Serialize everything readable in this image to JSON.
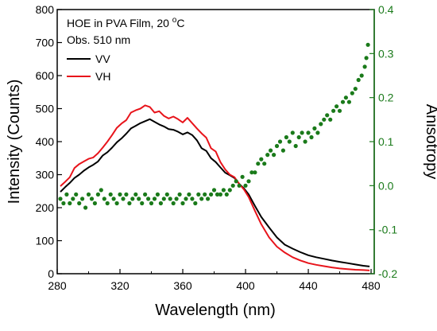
{
  "chart_data": {
    "type": "line",
    "annotation": {
      "line1_prefix": "HOE in PVA Film, 20 ",
      "line1_sup": "o",
      "line1_suffix": "C",
      "line2": "Obs. 510 nm"
    },
    "xlabel": "Wavelength (nm)",
    "ylabel_left": "Intensity (Counts)",
    "ylabel_right": "Anisotropy",
    "xlim": [
      280,
      482
    ],
    "ylim_left": [
      0,
      800
    ],
    "ylim_right": [
      -0.2,
      0.4
    ],
    "x_ticks": [
      280,
      320,
      360,
      400,
      440,
      480
    ],
    "y_left_ticks": [
      0,
      100,
      200,
      300,
      400,
      500,
      600,
      700,
      800
    ],
    "y_right_ticks": [
      -0.2,
      -0.1,
      0.0,
      0.1,
      0.2,
      0.3,
      0.4
    ],
    "y_right_tick_labels": [
      "-0.2",
      "-0.1",
      "0.0",
      "0.1",
      "0.2",
      "0.3",
      "0.4"
    ],
    "legend_placement": "top-left",
    "colors": {
      "VV": "#000000",
      "VH": "#e8141b",
      "anisotropy": "#1a7a1a",
      "right_axis": "#1a7a1a"
    },
    "series": [
      {
        "name": "VV",
        "axis": "left",
        "x": [
          282,
          285,
          288,
          291,
          294,
          297,
          300,
          303,
          306,
          309,
          312,
          315,
          318,
          321,
          324,
          327,
          330,
          333,
          336,
          339,
          342,
          345,
          348,
          351,
          354,
          357,
          360,
          363,
          366,
          369,
          372,
          375,
          378,
          381,
          384,
          387,
          390,
          393,
          396,
          399,
          402,
          406,
          410,
          415,
          420,
          425,
          430,
          435,
          440,
          445,
          450,
          455,
          460,
          465,
          470,
          475,
          479
        ],
        "y": [
          248,
          262,
          275,
          290,
          300,
          312,
          322,
          330,
          340,
          358,
          368,
          382,
          398,
          410,
          424,
          440,
          448,
          456,
          462,
          468,
          460,
          452,
          446,
          438,
          436,
          430,
          422,
          428,
          420,
          404,
          380,
          372,
          350,
          338,
          322,
          306,
          298,
          290,
          272,
          258,
          240,
          205,
          172,
          140,
          110,
          88,
          76,
          65,
          56,
          50,
          45,
          40,
          36,
          32,
          28,
          24,
          22
        ]
      },
      {
        "name": "VH",
        "axis": "left",
        "x": [
          282,
          285,
          288,
          291,
          294,
          297,
          300,
          303,
          306,
          309,
          312,
          315,
          318,
          321,
          324,
          327,
          330,
          333,
          336,
          339,
          342,
          345,
          348,
          351,
          354,
          357,
          360,
          363,
          366,
          369,
          372,
          375,
          378,
          381,
          384,
          387,
          390,
          393,
          396,
          399,
          402,
          406,
          410,
          415,
          420,
          425,
          430,
          435,
          440,
          445,
          450,
          455,
          460,
          465,
          470,
          475,
          479
        ],
        "y": [
          265,
          278,
          292,
          320,
          332,
          340,
          348,
          352,
          365,
          382,
          400,
          420,
          442,
          455,
          465,
          488,
          495,
          500,
          510,
          505,
          488,
          492,
          478,
          470,
          476,
          468,
          458,
          472,
          456,
          440,
          425,
          412,
          380,
          370,
          338,
          316,
          300,
          292,
          272,
          255,
          232,
          190,
          150,
          110,
          82,
          64,
          50,
          40,
          32,
          27,
          23,
          19,
          16,
          14,
          12,
          11,
          10
        ]
      },
      {
        "name": "anisotropy",
        "axis": "right",
        "x": [
          282,
          284,
          286,
          288,
          290,
          292,
          294,
          296,
          298,
          300,
          302,
          304,
          306,
          308,
          310,
          312,
          314,
          316,
          318,
          320,
          322,
          324,
          326,
          328,
          330,
          332,
          334,
          336,
          338,
          340,
          342,
          344,
          346,
          348,
          350,
          352,
          354,
          356,
          358,
          360,
          362,
          364,
          366,
          368,
          370,
          372,
          374,
          376,
          378,
          380,
          382,
          384,
          386,
          388,
          390,
          392,
          394,
          396,
          398,
          400,
          402,
          404,
          406,
          408,
          410,
          412,
          414,
          416,
          418,
          420,
          422,
          424,
          426,
          428,
          430,
          432,
          434,
          436,
          438,
          440,
          442,
          444,
          446,
          448,
          450,
          452,
          454,
          456,
          458,
          460,
          462,
          464,
          466,
          468,
          470,
          472,
          474,
          476,
          477,
          478
        ],
        "y": [
          -0.03,
          -0.04,
          -0.02,
          -0.04,
          -0.03,
          -0.02,
          -0.04,
          -0.03,
          -0.05,
          -0.02,
          -0.03,
          -0.04,
          -0.02,
          -0.01,
          -0.03,
          -0.04,
          -0.02,
          -0.03,
          -0.04,
          -0.02,
          -0.03,
          -0.02,
          -0.04,
          -0.03,
          -0.02,
          -0.03,
          -0.04,
          -0.02,
          -0.03,
          -0.04,
          -0.03,
          -0.02,
          -0.04,
          -0.03,
          -0.02,
          -0.03,
          -0.04,
          -0.03,
          -0.02,
          -0.04,
          -0.03,
          -0.02,
          -0.03,
          -0.04,
          -0.02,
          -0.03,
          -0.02,
          -0.03,
          -0.02,
          -0.01,
          -0.02,
          -0.02,
          -0.01,
          -0.02,
          -0.01,
          0.0,
          0.01,
          0.0,
          0.02,
          0.0,
          0.01,
          0.03,
          0.03,
          0.05,
          0.06,
          0.05,
          0.07,
          0.08,
          0.07,
          0.09,
          0.1,
          0.08,
          0.11,
          0.1,
          0.12,
          0.09,
          0.11,
          0.12,
          0.1,
          0.12,
          0.11,
          0.13,
          0.12,
          0.14,
          0.15,
          0.16,
          0.15,
          0.17,
          0.18,
          0.17,
          0.19,
          0.2,
          0.19,
          0.21,
          0.22,
          0.24,
          0.25,
          0.27,
          0.29,
          0.32
        ]
      }
    ]
  }
}
